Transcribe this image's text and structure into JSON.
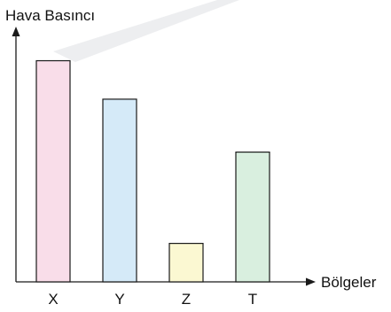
{
  "chart_data": {
    "type": "bar",
    "ylabel": "Hava Basıncı",
    "xlabel": "Bölgeler",
    "categories": [
      "X",
      "Y",
      "Z",
      "T"
    ],
    "values": [
      23,
      19,
      4,
      13.5
    ],
    "ylim": [
      0,
      26
    ],
    "grid": false,
    "legend": "none",
    "colors": [
      "#f9dde9",
      "#d5eaf8",
      "#fbf8d2",
      "#d9efdf"
    ],
    "y_ticks_shown": false
  }
}
